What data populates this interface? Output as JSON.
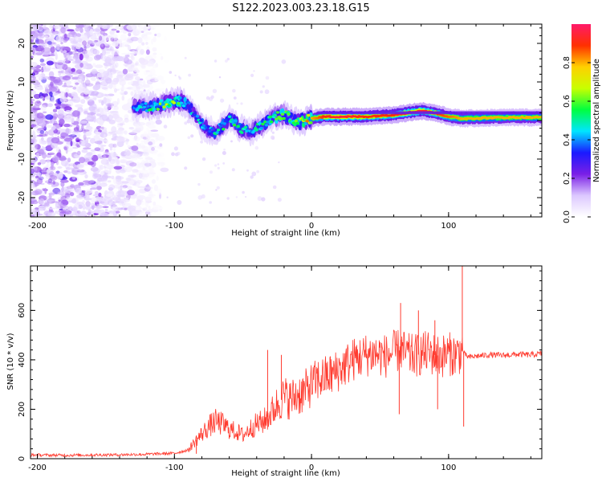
{
  "figure": {
    "title": "S122.2023.003.23.18.G15"
  },
  "chart_data": [
    {
      "type": "heatmap",
      "title": "S122.2023.003.23.18.G15",
      "xlabel": "Height of straight line (km)",
      "ylabel": "Frequency (Hz)",
      "xlim": [
        -205,
        168
      ],
      "ylim": [
        -25,
        25
      ],
      "x_ticks": [
        -200,
        -100,
        0,
        100
      ],
      "y_ticks": [
        -20,
        -10,
        0,
        10,
        20
      ],
      "colorbar": {
        "label": "Normalized spectral amplitude",
        "range": [
          0.0,
          1.0
        ],
        "ticks": [
          "0.0",
          "0.2",
          "0.4",
          "0.6",
          "0.8"
        ],
        "colormap": [
          "#ffffff",
          "#dcc8ff",
          "#7a1fe6",
          "#1a1aff",
          "#00e5ff",
          "#00ff40",
          "#c8ff00",
          "#ffd000",
          "#ff3000",
          "#ff1a6a"
        ]
      },
      "ridge": {
        "x": [
          -130,
          -120,
          -110,
          -100,
          -95,
          -90,
          -85,
          -80,
          -75,
          -70,
          -65,
          -60,
          -55,
          -50,
          -45,
          -40,
          -35,
          -30,
          -25,
          -20,
          -15,
          -10,
          -5,
          0,
          10,
          20,
          40,
          60,
          80,
          90,
          100,
          110,
          130,
          150,
          168
        ],
        "y": [
          3.5,
          3.5,
          4.0,
          5.0,
          5.0,
          4.0,
          1.5,
          -1.0,
          -2.5,
          -3.0,
          -1.5,
          0.5,
          -1.0,
          -2.5,
          -3.0,
          -2.0,
          -1.0,
          0.5,
          1.0,
          1.5,
          0.5,
          -0.5,
          0.0,
          0.5,
          1.0,
          1.0,
          1.0,
          1.5,
          2.5,
          2.0,
          1.0,
          0.5,
          0.7,
          0.8,
          0.8
        ],
        "amplitude": [
          0.35,
          0.45,
          0.55,
          0.6,
          0.55,
          0.45,
          0.4,
          0.45,
          0.35,
          0.45,
          0.5,
          0.45,
          0.5,
          0.45,
          0.4,
          0.5,
          0.5,
          0.5,
          0.55,
          0.6,
          0.55,
          0.6,
          0.65,
          0.8,
          0.9,
          0.95,
          0.9,
          0.9,
          0.95,
          0.9,
          0.85,
          0.8,
          0.8,
          0.8,
          0.8
        ]
      },
      "noise_region": {
        "x": [
          -205,
          -120
        ],
        "amplitude": 0.1
      }
    },
    {
      "type": "line",
      "xlabel": "Height of straight line (km)",
      "ylabel": "SNR (10 * v/v)",
      "xlim": [
        -205,
        168
      ],
      "ylim": [
        0,
        780
      ],
      "x_ticks": [
        -200,
        -100,
        0,
        100
      ],
      "y_ticks": [
        0,
        200,
        400,
        600
      ],
      "color": "#ff3b2f",
      "series": [
        {
          "x": [
            -205,
            -180,
            -160,
            -140,
            -120,
            -100,
            -90,
            -85,
            -80,
            -75,
            -70,
            -65,
            -60,
            -55,
            -50,
            -45,
            -40,
            -35,
            -30,
            -25,
            -20,
            -15,
            -10,
            -5,
            0,
            5,
            10,
            15,
            20,
            25,
            30,
            35,
            40,
            45,
            50,
            55,
            60,
            65,
            70,
            75,
            80,
            85,
            90,
            95,
            100,
            105,
            108,
            110,
            112,
            115,
            120,
            130,
            140,
            150,
            160,
            168
          ],
          "values": [
            15,
            14,
            15,
            16,
            18,
            22,
            35,
            70,
            100,
            130,
            150,
            140,
            120,
            110,
            95,
            120,
            140,
            150,
            180,
            220,
            250,
            240,
            260,
            270,
            300,
            320,
            330,
            340,
            360,
            380,
            400,
            410,
            420,
            425,
            420,
            415,
            430,
            440,
            420,
            415,
            425,
            430,
            420,
            415,
            425,
            420,
            430,
            440,
            420,
            410,
            415,
            420,
            418,
            422,
            420,
            425
          ]
        }
      ],
      "spikes": [
        {
          "x": -84,
          "value": 20
        },
        {
          "x": -32,
          "value": 440
        },
        {
          "x": -22,
          "value": 420
        },
        {
          "x": 65,
          "value": 630
        },
        {
          "x": 64,
          "value": 180
        },
        {
          "x": 78,
          "value": 600
        },
        {
          "x": 90,
          "value": 560
        },
        {
          "x": 92,
          "value": 200
        },
        {
          "x": 110,
          "value": 780
        },
        {
          "x": 111,
          "value": 130
        }
      ]
    }
  ]
}
